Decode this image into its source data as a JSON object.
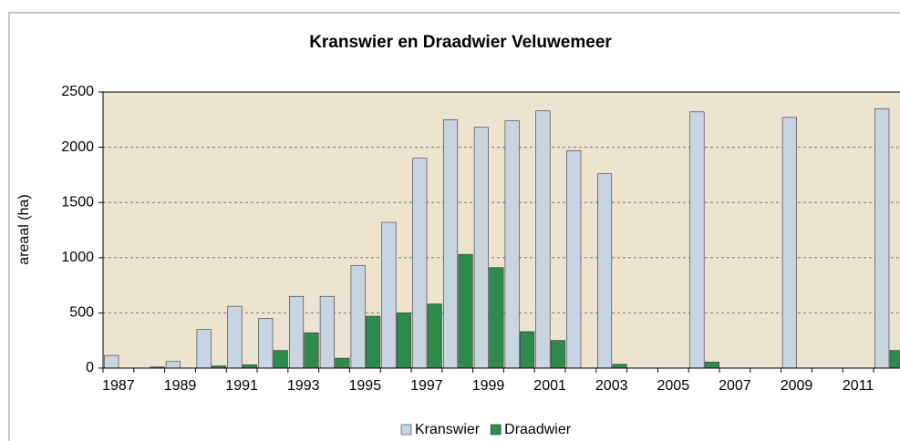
{
  "chart_data": {
    "type": "bar",
    "title": "Kranswier en Draadwier Veluwemeer",
    "y_label": "areaal (ha)",
    "categories": [
      "1987",
      null,
      "1989",
      null,
      "1991",
      null,
      "1993",
      null,
      "1995",
      null,
      "1997",
      null,
      "1999",
      null,
      "2001",
      null,
      "2003",
      null,
      "2005",
      null,
      "2007",
      null,
      "2009",
      null,
      "2011",
      null
    ],
    "series": [
      {
        "name": "Kranswier",
        "color": "#c9d4e2",
        "values": [
          115,
          null,
          60,
          350,
          560,
          450,
          650,
          650,
          930,
          1320,
          1900,
          2250,
          2180,
          2240,
          2330,
          1970,
          1760,
          null,
          null,
          2320,
          null,
          null,
          2270,
          null,
          null,
          2350
        ]
      },
      {
        "name": "Draadwier",
        "color": "#2e8b4e",
        "values": [
          null,
          10,
          null,
          20,
          30,
          160,
          320,
          90,
          470,
          500,
          580,
          1030,
          910,
          330,
          250,
          null,
          35,
          null,
          null,
          55,
          null,
          null,
          null,
          null,
          null,
          160
        ]
      }
    ],
    "ylim": [
      0,
      2500
    ],
    "yticks": [
      0,
      500,
      1000,
      1500,
      2000,
      2500
    ],
    "grid": true,
    "legend": "bottom"
  }
}
